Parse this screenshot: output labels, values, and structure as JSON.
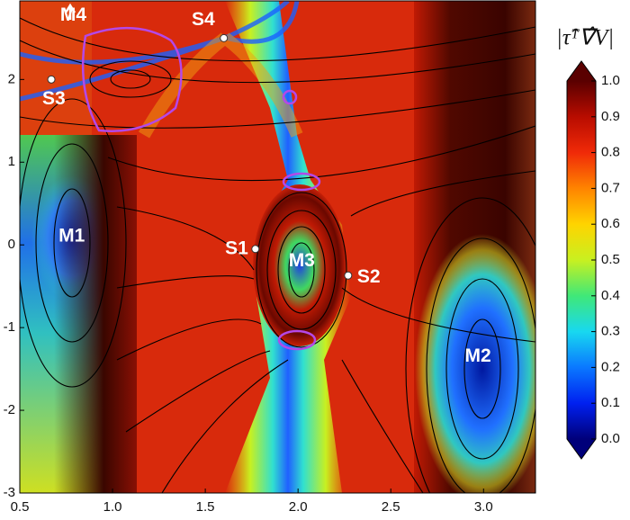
{
  "chart_data": {
    "type": "heatmap",
    "xlim": [
      0.5,
      3.28
    ],
    "ylim": [
      -3,
      2.95
    ],
    "xticks": [
      0.5,
      {
        "value": 1,
        "label": "1.0"
      },
      1.5,
      {
        "value": 2,
        "label": "2.0"
      },
      2.5,
      {
        "value": 3,
        "label": "3.0"
      }
    ],
    "yticks": [
      -3,
      -2,
      -1,
      0,
      1,
      2
    ],
    "points": [
      {
        "label": "S1",
        "x": 1.77,
        "y": -0.05,
        "marker": true
      },
      {
        "label": "S2",
        "x": 2.27,
        "y": -0.37,
        "marker": true
      },
      {
        "label": "S3",
        "x": 0.67,
        "y": 2.0,
        "marker": true
      },
      {
        "label": "S4",
        "x": 1.6,
        "y": 2.5,
        "marker": true
      },
      {
        "label": "M1",
        "x": 0.78,
        "y": 0.1,
        "marker": false
      },
      {
        "label": "M2",
        "x": 2.97,
        "y": -1.35,
        "marker": false
      },
      {
        "label": "M3",
        "x": 2.02,
        "y": -0.2,
        "marker": false
      },
      {
        "label": "M4",
        "x": 0.75,
        "y": 2.77,
        "marker": false
      }
    ],
    "colorbar": {
      "title": "|τ̂ᵀ∇̂V|",
      "lim": [
        0,
        1
      ],
      "ticks": [
        {
          "value": 0,
          "label": "0.0"
        },
        0.1,
        0.2,
        0.3,
        0.4,
        0.5,
        0.6,
        0.7,
        0.8,
        0.9,
        {
          "value": 1,
          "label": "1.0"
        }
      ],
      "colormap": [
        "#00007a",
        "#0020f0",
        "#0a78ff",
        "#18d8f0",
        "#40e878",
        "#c8f020",
        "#ffd400",
        "#ff8400",
        "#f02a08",
        "#b80c00",
        "#5a0000"
      ]
    }
  }
}
